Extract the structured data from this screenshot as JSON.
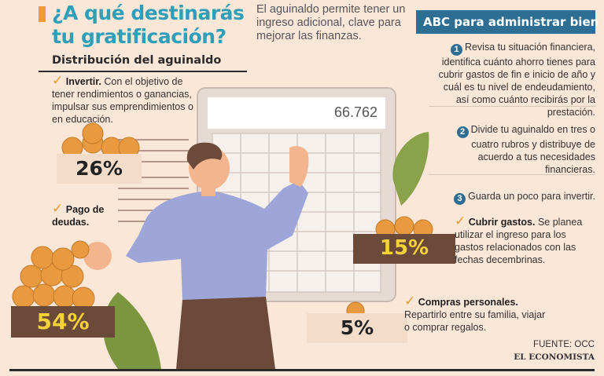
{
  "title": "¿A qué destinarás tu gratificación?",
  "intro": "El aguinaldo permite tener un ingreso adicional, clave para mejorar las finanzas.",
  "distribution": {
    "heading": "Distribución del aguinaldo",
    "items": [
      {
        "label": "Invertir.",
        "text": "Con el objetivo de tener rendimientos o ganancias, impulsar sus emprendimientos o en educación.",
        "percent": "26%"
      },
      {
        "label": "Pago de deudas.",
        "text": "",
        "percent": "54%"
      },
      {
        "label": "Cubrir gastos.",
        "text": "Se planea utilizar el ingreso para los gastos relacionados con las fechas decembrinas.",
        "percent": "15%"
      },
      {
        "label": "Compras personales.",
        "text": "Repartirlo entre su familia, viajar o comprar regalos.",
        "percent": "5%"
      }
    ]
  },
  "abc": {
    "heading": "ABC para administrar bien",
    "steps": [
      {
        "num": "1",
        "text": "Revisa tu situación financiera, identifica cuánto ahorro tienes para cubrir gastos de fin e inicio de año y cuál es tu nivel de endeudamiento, así como cuánto recibirás por la prestación."
      },
      {
        "num": "2",
        "text": "Divide tu aguinaldo en tres o cuatro rubros y distribuye de acuerdo a tus necesidades financieras."
      },
      {
        "num": "3",
        "text": "Guarda un poco para invertir."
      }
    ]
  },
  "calculator_display": "66.762",
  "source": "FUENTE: OCC",
  "brand": "EL ECONOMISTA",
  "colors": {
    "title": "#2f9fb9",
    "accent": "#f09a3c",
    "abc_header": "#2f6e94",
    "label_box_dark": "#6b4a3a",
    "label_box_light": "#f4dccb",
    "pct_yellow": "#f6d23a",
    "coin": "#e99a3e"
  }
}
